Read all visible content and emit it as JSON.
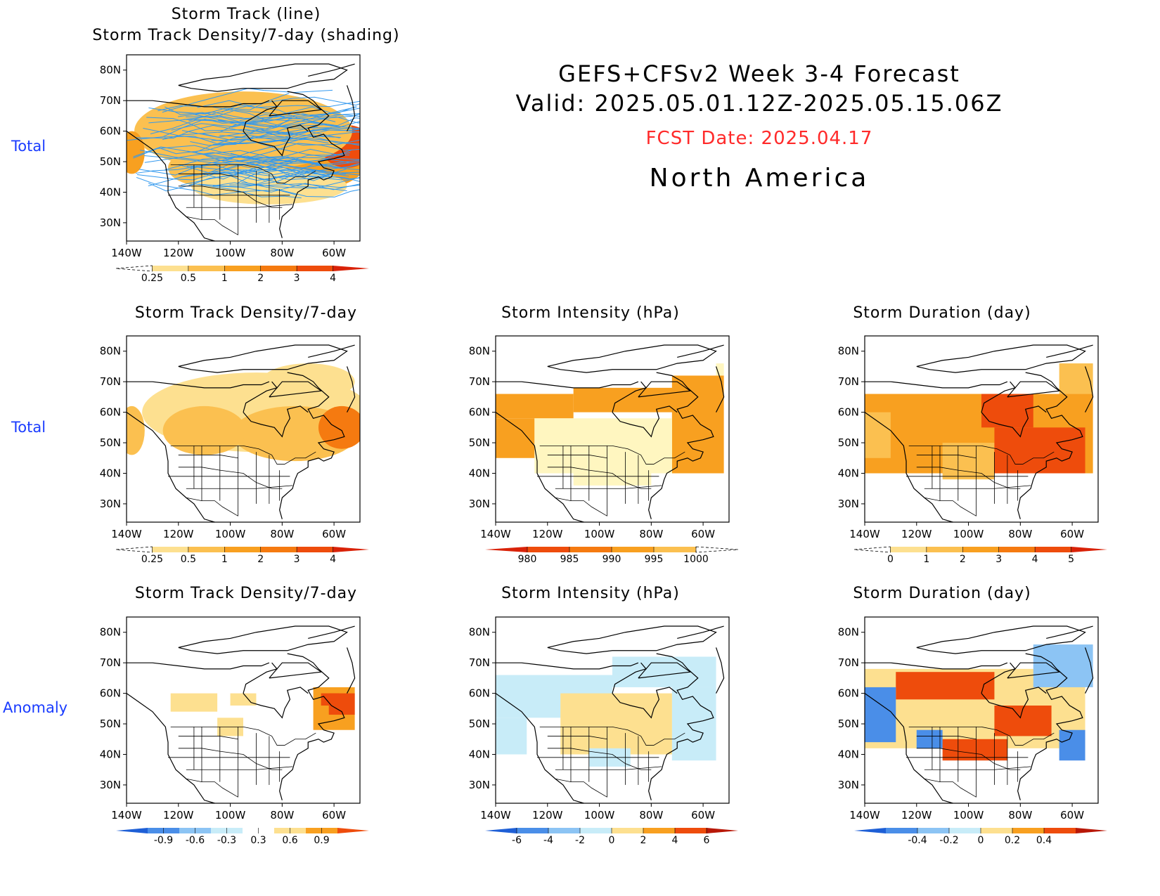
{
  "header": {
    "title": "GEFS+CFSv2 Week 3-4 Forecast",
    "valid": "Valid: 2025.05.01.12Z-2025.05.15.06Z",
    "fcst_date": "FCST Date: 2025.04.17",
    "region": "North America"
  },
  "row_labels": [
    "Total",
    "Total",
    "Anomaly"
  ],
  "axes": {
    "lat_ticks": [
      "80N",
      "70N",
      "60N",
      "50N",
      "40N",
      "30N"
    ],
    "lon_ticks": [
      "140W",
      "120W",
      "100W",
      "80W",
      "60W"
    ],
    "lat_range": [
      24,
      85
    ],
    "lon_range": [
      -140,
      -50
    ]
  },
  "colors": {
    "track_line": "#3399ee",
    "row_label": "#1a3cff",
    "fcst_date": "#ff2a2a"
  },
  "chart_data": [
    {
      "id": "p1",
      "type": "heatmap",
      "title_line1": "Storm Track (line)",
      "title_line2": "Storm Track Density/7-day (shading)",
      "colorbar": {
        "labels": [
          "0.25",
          "0.5",
          "1",
          "2",
          "3",
          "4"
        ],
        "colors": [
          "#fff6c0",
          "#fde090",
          "#fbc050",
          "#f8a020",
          "#f57a10",
          "#ee4c0c",
          "#d92208"
        ],
        "low_dashed": true
      },
      "blobs": [
        {
          "lon": -72,
          "lat": 52,
          "rx": 26,
          "ry": 12,
          "level": 3
        },
        {
          "lon": -55,
          "lat": 55,
          "rx": 10,
          "ry": 7,
          "level": 5
        },
        {
          "lon": -100,
          "lat": 58,
          "rx": 30,
          "ry": 8,
          "level": 3
        },
        {
          "lon": -110,
          "lat": 48,
          "rx": 14,
          "ry": 6,
          "level": 2
        },
        {
          "lon": -95,
          "lat": 60,
          "rx": 42,
          "ry": 13,
          "level": 2
        },
        {
          "lon": -138,
          "lat": 53,
          "rx": 5,
          "ry": 7,
          "level": 3
        },
        {
          "lon": -85,
          "lat": 42,
          "rx": 30,
          "ry": 6,
          "level": 1
        }
      ],
      "tracks": true
    },
    {
      "id": "p2",
      "type": "heatmap",
      "title_line1": "Storm Track Density/7-day",
      "colorbar": {
        "labels": [
          "0.25",
          "0.5",
          "1",
          "2",
          "3",
          "4"
        ],
        "colors": [
          "#fff6c0",
          "#fde090",
          "#fbc050",
          "#f8a020",
          "#f57a10",
          "#ee4c0c",
          "#d92208"
        ],
        "low_dashed": true
      },
      "blobs": [
        {
          "lon": -90,
          "lat": 60,
          "rx": 44,
          "ry": 13,
          "level": 1
        },
        {
          "lon": -75,
          "lat": 53,
          "rx": 24,
          "ry": 9,
          "level": 2
        },
        {
          "lon": -110,
          "lat": 54,
          "rx": 16,
          "ry": 8,
          "level": 2
        },
        {
          "lon": -57,
          "lat": 55,
          "rx": 9,
          "ry": 7,
          "level": 4
        },
        {
          "lon": -138,
          "lat": 54,
          "rx": 5,
          "ry": 8,
          "level": 2
        },
        {
          "lon": -70,
          "lat": 70,
          "rx": 18,
          "ry": 6,
          "level": 1
        }
      ],
      "tracks": false
    },
    {
      "id": "p3",
      "type": "heatmap",
      "title_line1": "Storm Intensity (hPa)",
      "colorbar": {
        "labels": [
          "980",
          "985",
          "990",
          "995",
          "1000"
        ],
        "colors": [
          "#d92208",
          "#ee4c0c",
          "#f57a10",
          "#f8a020",
          "#fbc050",
          "#fff6c0"
        ],
        "high_dashed": true
      },
      "cells": [
        {
          "lon": [
            -140,
            -110
          ],
          "lat": [
            58,
            66
          ],
          "level": 3
        },
        {
          "lon": [
            -110,
            -70
          ],
          "lat": [
            60,
            68
          ],
          "level": 3
        },
        {
          "lon": [
            -140,
            -125
          ],
          "lat": [
            45,
            58
          ],
          "level": 3
        },
        {
          "lon": [
            -72,
            -52
          ],
          "lat": [
            40,
            72
          ],
          "level": 3
        },
        {
          "lon": [
            -125,
            -72
          ],
          "lat": [
            40,
            58
          ],
          "level": 5
        },
        {
          "lon": [
            -110,
            -80
          ],
          "lat": [
            36,
            40
          ],
          "level": 5
        },
        {
          "lon": [
            -55,
            -52
          ],
          "lat": [
            72,
            76
          ],
          "level": 5
        }
      ]
    },
    {
      "id": "p4",
      "type": "heatmap",
      "title_line1": "Storm Duration (day)",
      "colorbar": {
        "labels": [
          "0",
          "1",
          "2",
          "3",
          "4",
          "5"
        ],
        "colors": [
          "#fff6c0",
          "#fde090",
          "#fbc050",
          "#f8a020",
          "#f57a10",
          "#ee4c0c",
          "#d92208"
        ],
        "low_dashed": true
      },
      "cells": [
        {
          "lon": [
            -140,
            -52
          ],
          "lat": [
            40,
            66
          ],
          "level": 3
        },
        {
          "lon": [
            -65,
            -52
          ],
          "lat": [
            66,
            76
          ],
          "level": 2
        },
        {
          "lon": [
            -110,
            -90
          ],
          "lat": [
            38,
            50
          ],
          "level": 2
        },
        {
          "lon": [
            -95,
            -75
          ],
          "lat": [
            55,
            66
          ],
          "level": 5
        },
        {
          "lon": [
            -90,
            -55
          ],
          "lat": [
            40,
            55
          ],
          "level": 5
        },
        {
          "lon": [
            -140,
            -130
          ],
          "lat": [
            45,
            60
          ],
          "level": 2
        }
      ]
    },
    {
      "id": "p5",
      "type": "heatmap",
      "title_line1": "Storm Track Density/7-day",
      "colorbar": {
        "labels": [
          "-0.9",
          "-0.6",
          "-0.3",
          "0.3",
          "0.6",
          "0.9"
        ],
        "colors": [
          "#1e5fd6",
          "#4a8ee8",
          "#8cc4f4",
          "#c8ecf8",
          "#ffffff",
          "#fde090",
          "#f8a020",
          "#ee4c0c"
        ]
      },
      "cells": [
        {
          "lon": [
            -123,
            -105
          ],
          "lat": [
            54,
            60
          ],
          "level": 5
        },
        {
          "lon": [
            -100,
            -90
          ],
          "lat": [
            56,
            60
          ],
          "level": 5
        },
        {
          "lon": [
            -105,
            -95
          ],
          "lat": [
            46,
            52
          ],
          "level": 5
        },
        {
          "lon": [
            -68,
            -52
          ],
          "lat": [
            48,
            62
          ],
          "level": 6
        },
        {
          "lon": [
            -62,
            -52
          ],
          "lat": [
            53,
            60
          ],
          "level": 7
        },
        {
          "lon": [
            -65,
            -58
          ],
          "lat": [
            56,
            60
          ],
          "level": 7
        }
      ]
    },
    {
      "id": "p6",
      "type": "heatmap",
      "title_line1": "Storm Intensity (hPa)",
      "colorbar": {
        "labels": [
          "-6",
          "-4",
          "-2",
          "0",
          "2",
          "4",
          "6"
        ],
        "colors": [
          "#1e5fd6",
          "#4a8ee8",
          "#8cc4f4",
          "#c8ecf8",
          "#fde090",
          "#f8a020",
          "#ee4c0c",
          "#b81808"
        ]
      },
      "cells": [
        {
          "lon": [
            -140,
            -95
          ],
          "lat": [
            52,
            66
          ],
          "level": 3
        },
        {
          "lon": [
            -95,
            -55
          ],
          "lat": [
            62,
            72
          ],
          "level": 3
        },
        {
          "lon": [
            -72,
            -55
          ],
          "lat": [
            38,
            62
          ],
          "level": 3
        },
        {
          "lon": [
            -140,
            -128
          ],
          "lat": [
            40,
            52
          ],
          "level": 3
        },
        {
          "lon": [
            -115,
            -72
          ],
          "lat": [
            40,
            60
          ],
          "level": 4
        },
        {
          "lon": [
            -104,
            -88
          ],
          "lat": [
            36,
            42
          ],
          "level": 3
        }
      ]
    },
    {
      "id": "p7",
      "type": "heatmap",
      "title_line1": "Storm Duration (day)",
      "colorbar": {
        "labels": [
          "-0.4",
          "-0.2",
          "0",
          "0.2",
          "0.4"
        ],
        "colors": [
          "#1e5fd6",
          "#4a8ee8",
          "#8cc4f4",
          "#c8ecf8",
          "#fde090",
          "#f8a020",
          "#ee4c0c",
          "#b81808"
        ]
      },
      "cells": [
        {
          "lon": [
            -140,
            -55
          ],
          "lat": [
            42,
            68
          ],
          "level": 4
        },
        {
          "lon": [
            -128,
            -90
          ],
          "lat": [
            58,
            67
          ],
          "level": 6
        },
        {
          "lon": [
            -90,
            -68
          ],
          "lat": [
            46,
            56
          ],
          "level": 6
        },
        {
          "lon": [
            -110,
            -85
          ],
          "lat": [
            38,
            45
          ],
          "level": 6
        },
        {
          "lon": [
            -75,
            -52
          ],
          "lat": [
            62,
            76
          ],
          "level": 2
        },
        {
          "lon": [
            -140,
            -128
          ],
          "lat": [
            44,
            62
          ],
          "level": 1
        },
        {
          "lon": [
            -120,
            -110
          ],
          "lat": [
            42,
            48
          ],
          "level": 1
        },
        {
          "lon": [
            -65,
            -55
          ],
          "lat": [
            38,
            48
          ],
          "level": 1
        }
      ]
    }
  ]
}
